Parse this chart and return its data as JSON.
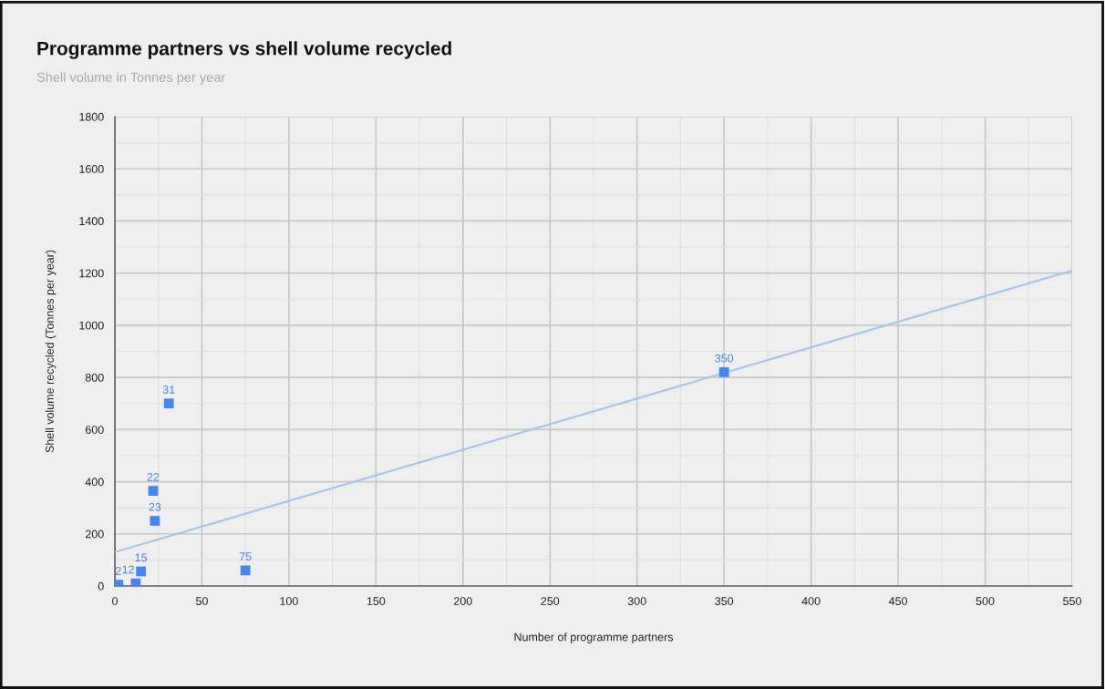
{
  "chart_data": {
    "type": "scatter",
    "title": "Programme partners vs shell volume recycled",
    "subtitle": "Shell volume in Tonnes per year",
    "xlabel": "Number of programme partners",
    "ylabel": "Shell volume recycled (Tonnes per year)",
    "series": [
      {
        "color": "#4285f4",
        "marker": "square",
        "x": [
          2,
          12,
          15,
          23,
          22,
          31,
          75,
          350
        ],
        "values": [
          5,
          10,
          56,
          250,
          365,
          700,
          60,
          820
        ]
      },
      {
        "type": "line",
        "color": "#a8c4f0",
        "marker": "none",
        "x": [
          0,
          550
        ],
        "values": [
          130,
          1210
        ]
      }
    ],
    "annotations": [
      {
        "text": "2",
        "x": 2,
        "y": 5
      },
      {
        "text": "12",
        "x": 12,
        "y": 10
      },
      {
        "text": "15",
        "x": 15,
        "y": 56
      },
      {
        "text": "23",
        "x": 23,
        "y": 250
      },
      {
        "text": "22",
        "x": 22,
        "y": 365
      },
      {
        "text": "31",
        "x": 31,
        "y": 700
      },
      {
        "text": "75",
        "x": 75,
        "y": 60
      },
      {
        "text": "350",
        "x": 350,
        "y": 820
      }
    ],
    "xlim": [
      0,
      550
    ],
    "ylim": [
      0,
      1800
    ],
    "xticks": [
      0,
      {
        "value": 25,
        "label": null
      },
      50,
      {
        "value": 75,
        "label": null
      },
      100,
      {
        "value": 125,
        "label": null
      },
      150,
      {
        "value": 175,
        "label": null
      },
      200,
      {
        "value": 225,
        "label": null
      },
      250,
      {
        "value": 275,
        "label": null
      },
      300,
      {
        "value": 325,
        "label": null
      },
      350,
      {
        "value": 375,
        "label": null
      },
      400,
      {
        "value": 425,
        "label": null
      },
      450,
      {
        "value": 475,
        "label": null
      },
      500,
      {
        "value": 525,
        "label": null
      },
      550
    ],
    "yticks": [
      0,
      {
        "value": 100,
        "label": null
      },
      200,
      {
        "value": 300,
        "label": null
      },
      400,
      {
        "value": 500,
        "label": null
      },
      600,
      {
        "value": 700,
        "label": null
      },
      800,
      {
        "value": 900,
        "label": null
      },
      1000,
      {
        "value": 1100,
        "label": null
      },
      1200,
      {
        "value": 1300,
        "label": null
      },
      1400,
      {
        "value": 1500,
        "label": null
      },
      1600,
      {
        "value": 1700,
        "label": null
      },
      1800
    ],
    "grid": true
  }
}
